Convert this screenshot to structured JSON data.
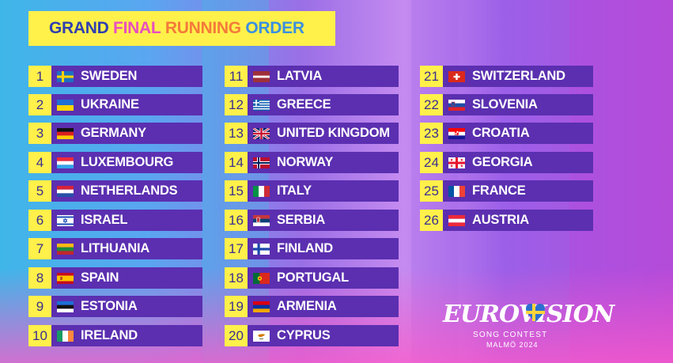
{
  "title": {
    "words": [
      {
        "text": "GRAND",
        "color": "#2f3fb0"
      },
      {
        "text": "FINAL",
        "color": "#e84fc0"
      },
      {
        "text": "RUNNING",
        "color": "#f47a3a"
      },
      {
        "text": "ORDER",
        "color": "#3a8fe0"
      }
    ]
  },
  "entries": [
    {
      "num": "1",
      "country": "SWEDEN",
      "flag": "sweden-flag-icon"
    },
    {
      "num": "2",
      "country": "UKRAINE",
      "flag": "ukraine-flag-icon"
    },
    {
      "num": "3",
      "country": "GERMANY",
      "flag": "germany-flag-icon"
    },
    {
      "num": "4",
      "country": "LUXEMBOURG",
      "flag": "luxembourg-flag-icon"
    },
    {
      "num": "5",
      "country": "NETHERLANDS",
      "flag": "netherlands-flag-icon"
    },
    {
      "num": "6",
      "country": "ISRAEL",
      "flag": "israel-flag-icon"
    },
    {
      "num": "7",
      "country": "LITHUANIA",
      "flag": "lithuania-flag-icon"
    },
    {
      "num": "8",
      "country": "SPAIN",
      "flag": "spain-flag-icon"
    },
    {
      "num": "9",
      "country": "ESTONIA",
      "flag": "estonia-flag-icon"
    },
    {
      "num": "10",
      "country": "IRELAND",
      "flag": "ireland-flag-icon"
    },
    {
      "num": "11",
      "country": "LATVIA",
      "flag": "latvia-flag-icon"
    },
    {
      "num": "12",
      "country": "GREECE",
      "flag": "greece-flag-icon"
    },
    {
      "num": "13",
      "country": "UNITED KINGDOM",
      "flag": "united-kingdom-flag-icon"
    },
    {
      "num": "14",
      "country": "NORWAY",
      "flag": "norway-flag-icon"
    },
    {
      "num": "15",
      "country": "ITALY",
      "flag": "italy-flag-icon"
    },
    {
      "num": "16",
      "country": "SERBIA",
      "flag": "serbia-flag-icon"
    },
    {
      "num": "17",
      "country": "FINLAND",
      "flag": "finland-flag-icon"
    },
    {
      "num": "18",
      "country": "PORTUGAL",
      "flag": "portugal-flag-icon"
    },
    {
      "num": "19",
      "country": "ARMENIA",
      "flag": "armenia-flag-icon"
    },
    {
      "num": "20",
      "country": "CYPRUS",
      "flag": "cyprus-flag-icon"
    },
    {
      "num": "21",
      "country": "SWITZERLAND",
      "flag": "switzerland-flag-icon"
    },
    {
      "num": "22",
      "country": "SLOVENIA",
      "flag": "slovenia-flag-icon"
    },
    {
      "num": "23",
      "country": "CROATIA",
      "flag": "croatia-flag-icon"
    },
    {
      "num": "24",
      "country": "GEORGIA",
      "flag": "georgia-flag-icon"
    },
    {
      "num": "25",
      "country": "FRANCE",
      "flag": "france-flag-icon"
    },
    {
      "num": "26",
      "country": "AUSTRIA",
      "flag": "austria-flag-icon"
    }
  ],
  "logo": {
    "word": "EUROVISION",
    "subtitle": "SONG CONTEST",
    "location": "MALMÖ 2024"
  },
  "colors": {
    "number_box": "#fff04a",
    "number_text": "#3a2f8f",
    "bar": "#5b2fb0"
  }
}
